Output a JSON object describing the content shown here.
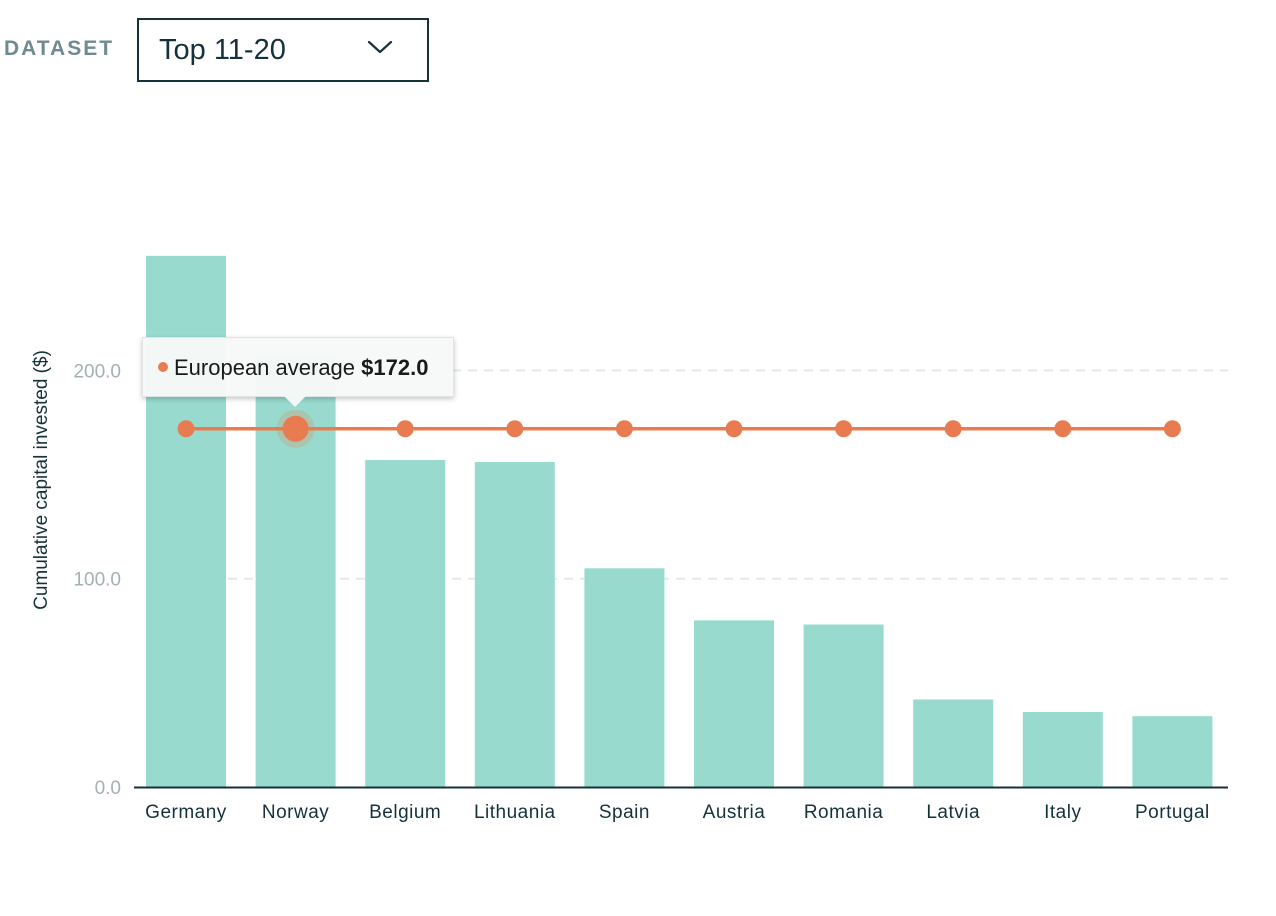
{
  "filter": {
    "label": "DATASET",
    "selected": "Top 11-20"
  },
  "colors": {
    "bar": "#98dbce",
    "average_line": "#e87b50",
    "axis": "#15323a",
    "gridline": "#e4e8e9"
  },
  "tooltip": {
    "label": "European average",
    "value": "$172.0"
  },
  "chart_data": {
    "type": "bar",
    "categories": [
      "Germany",
      "Norway",
      "Belgium",
      "Lithuania",
      "Spain",
      "Austria",
      "Romania",
      "Latvia",
      "Italy",
      "Portugal"
    ],
    "series": [
      {
        "values": [
          255,
          207,
          157,
          156,
          105,
          80,
          78,
          42,
          36,
          34
        ]
      },
      {
        "name": "European average",
        "type": "line",
        "values": [
          172,
          172,
          172,
          172,
          172,
          172,
          172,
          172,
          172,
          172
        ]
      }
    ],
    "ylabel": "Cumulative capital invested ($)",
    "xlabel": "",
    "yticks": [
      "0.0",
      "100.0",
      "200.0"
    ],
    "ylim": [
      0,
      260
    ],
    "grid": true,
    "highlighted_category": "Norway"
  }
}
